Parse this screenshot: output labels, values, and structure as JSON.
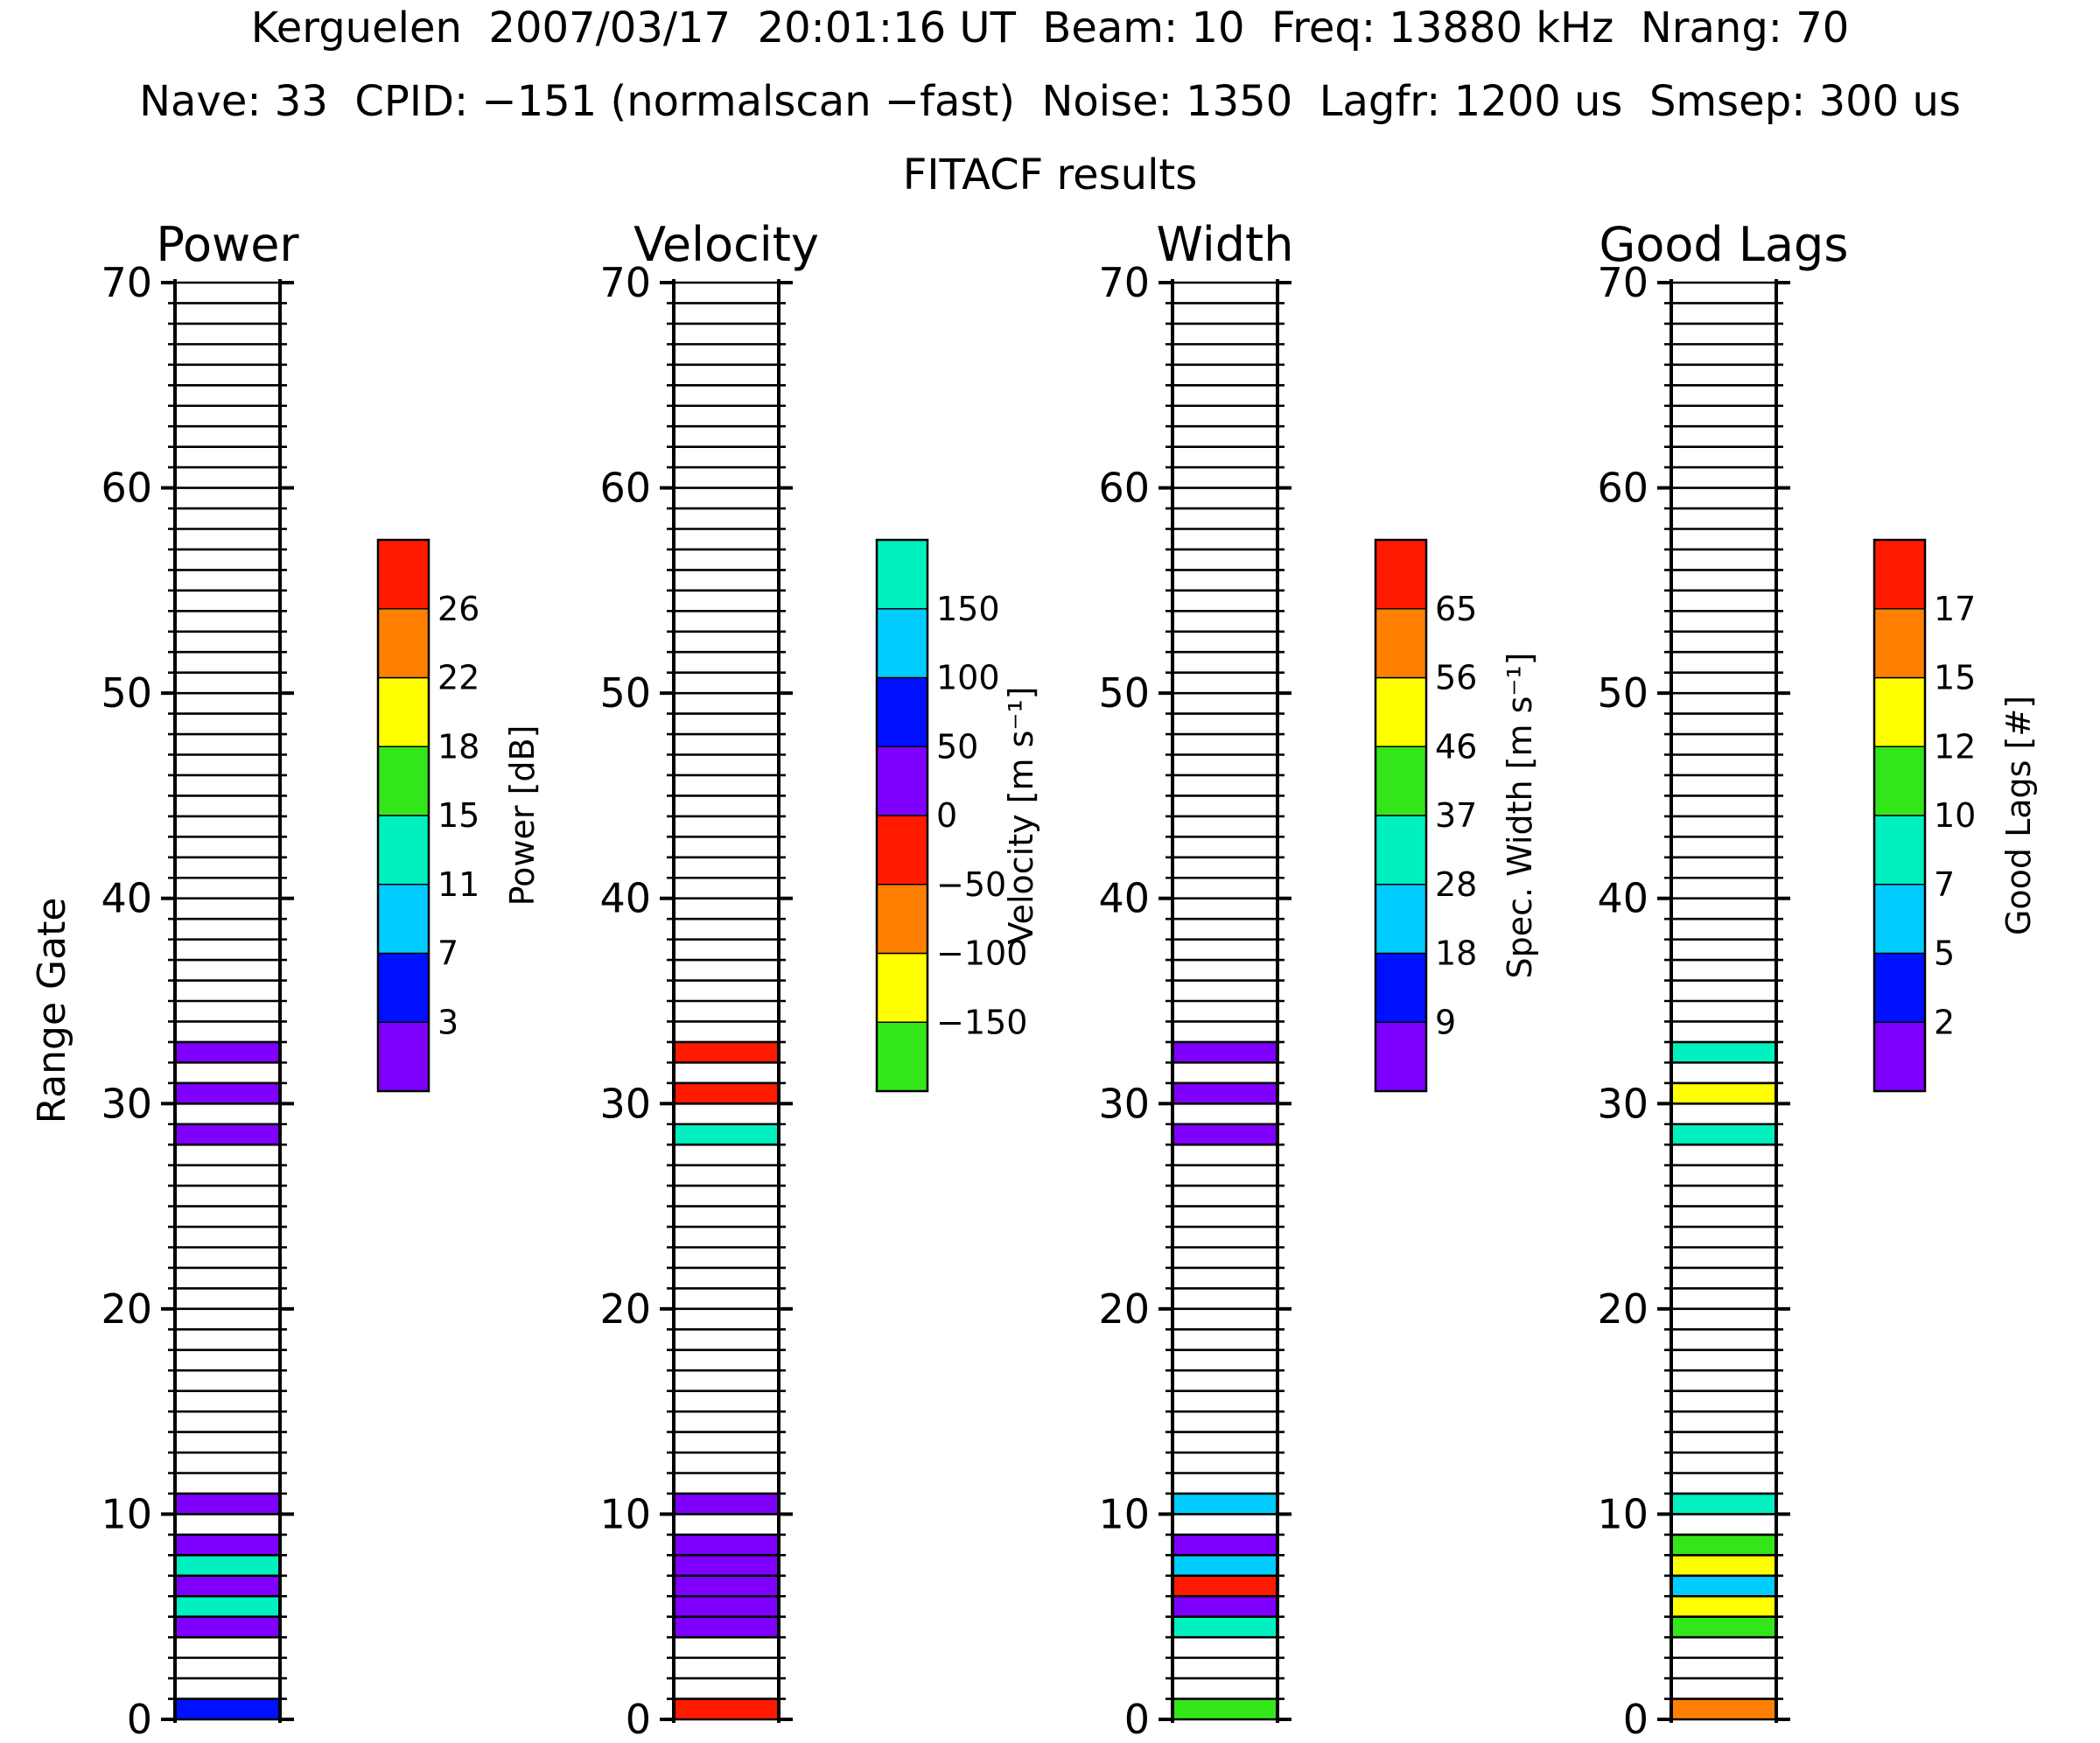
{
  "header": {
    "line1": "Kerguelen  2007/03/17  20:01:16 UT  Beam: 10  Freq: 13880 kHz  Nrang: 70",
    "line2": "Nave: 33  CPID: −151 (normalscan −fast)  Noise: 1350  Lagfr: 1200 us  Smsep: 300 us",
    "line3": "FITACF results"
  },
  "y_axis_label": "Range Gate",
  "chart_data": [
    {
      "type": "heatmap",
      "title": "Power",
      "y_ticks": [
        "0",
        "10",
        "20",
        "30",
        "40",
        "50",
        "60",
        "70"
      ],
      "ylim": [
        0,
        70
      ],
      "colorbar": {
        "label": "Power [dB]",
        "ticks": [
          "3",
          "7",
          "11",
          "15",
          "18",
          "22",
          "26"
        ],
        "colors": [
          "#7f00ff",
          "#0010ff",
          "#00ccff",
          "#00f0bf",
          "#33e61a",
          "#ffff00",
          "#ff8000",
          "#ff1a00"
        ]
      },
      "cells": [
        {
          "gate": 0,
          "color_index": 1
        },
        {
          "gate": 4,
          "color_index": 0
        },
        {
          "gate": 5,
          "color_index": 3
        },
        {
          "gate": 6,
          "color_index": 0
        },
        {
          "gate": 7,
          "color_index": 3
        },
        {
          "gate": 8,
          "color_index": 0
        },
        {
          "gate": 10,
          "color_index": 0
        },
        {
          "gate": 28,
          "color_index": 0
        },
        {
          "gate": 30,
          "color_index": 0
        },
        {
          "gate": 32,
          "color_index": 0
        }
      ]
    },
    {
      "type": "heatmap",
      "title": "Velocity",
      "y_ticks": [
        "0",
        "10",
        "20",
        "30",
        "40",
        "50",
        "60",
        "70"
      ],
      "ylim": [
        0,
        70
      ],
      "colorbar": {
        "label": "Velocity [m s⁻¹]",
        "ticks": [
          "−150",
          "−100",
          "−50",
          "0",
          "50",
          "100",
          "150"
        ],
        "colors": [
          "#33e61a",
          "#ffff00",
          "#ff8000",
          "#ff1a00",
          "#7f00ff",
          "#0010ff",
          "#00ccff",
          "#00f0bf"
        ]
      },
      "cells": [
        {
          "gate": 0,
          "color_index": 3
        },
        {
          "gate": 4,
          "color_index": 4
        },
        {
          "gate": 5,
          "color_index": 4
        },
        {
          "gate": 6,
          "color_index": 4
        },
        {
          "gate": 7,
          "color_index": 4
        },
        {
          "gate": 8,
          "color_index": 4
        },
        {
          "gate": 10,
          "color_index": 4
        },
        {
          "gate": 28,
          "color_index": 7
        },
        {
          "gate": 30,
          "color_index": 3
        },
        {
          "gate": 32,
          "color_index": 3
        }
      ]
    },
    {
      "type": "heatmap",
      "title": "Width",
      "y_ticks": [
        "0",
        "10",
        "20",
        "30",
        "40",
        "50",
        "60",
        "70"
      ],
      "ylim": [
        0,
        70
      ],
      "colorbar": {
        "label": "Spec. Width [m s⁻¹]",
        "ticks": [
          "9",
          "18",
          "28",
          "37",
          "46",
          "56",
          "65"
        ],
        "colors": [
          "#7f00ff",
          "#0010ff",
          "#00ccff",
          "#00f0bf",
          "#33e61a",
          "#ffff00",
          "#ff8000",
          "#ff1a00"
        ]
      },
      "cells": [
        {
          "gate": 0,
          "color_index": 4
        },
        {
          "gate": 4,
          "color_index": 3
        },
        {
          "gate": 5,
          "color_index": 0
        },
        {
          "gate": 6,
          "color_index": 7
        },
        {
          "gate": 7,
          "color_index": 2
        },
        {
          "gate": 8,
          "color_index": 0
        },
        {
          "gate": 10,
          "color_index": 2
        },
        {
          "gate": 28,
          "color_index": 0
        },
        {
          "gate": 30,
          "color_index": 0
        },
        {
          "gate": 32,
          "color_index": 0
        }
      ]
    },
    {
      "type": "heatmap",
      "title": "Good Lags",
      "y_ticks": [
        "0",
        "10",
        "20",
        "30",
        "40",
        "50",
        "60",
        "70"
      ],
      "ylim": [
        0,
        70
      ],
      "colorbar": {
        "label": "Good Lags [#]",
        "ticks": [
          "2",
          "5",
          "7",
          "10",
          "12",
          "15",
          "17"
        ],
        "colors": [
          "#7f00ff",
          "#0010ff",
          "#00ccff",
          "#00f0bf",
          "#33e61a",
          "#ffff00",
          "#ff8000",
          "#ff1a00"
        ]
      },
      "cells": [
        {
          "gate": 0,
          "color_index": 6
        },
        {
          "gate": 4,
          "color_index": 4
        },
        {
          "gate": 5,
          "color_index": 5
        },
        {
          "gate": 6,
          "color_index": 2
        },
        {
          "gate": 7,
          "color_index": 5
        },
        {
          "gate": 8,
          "color_index": 4
        },
        {
          "gate": 10,
          "color_index": 3
        },
        {
          "gate": 28,
          "color_index": 3
        },
        {
          "gate": 30,
          "color_index": 5
        },
        {
          "gate": 32,
          "color_index": 3
        }
      ]
    }
  ]
}
